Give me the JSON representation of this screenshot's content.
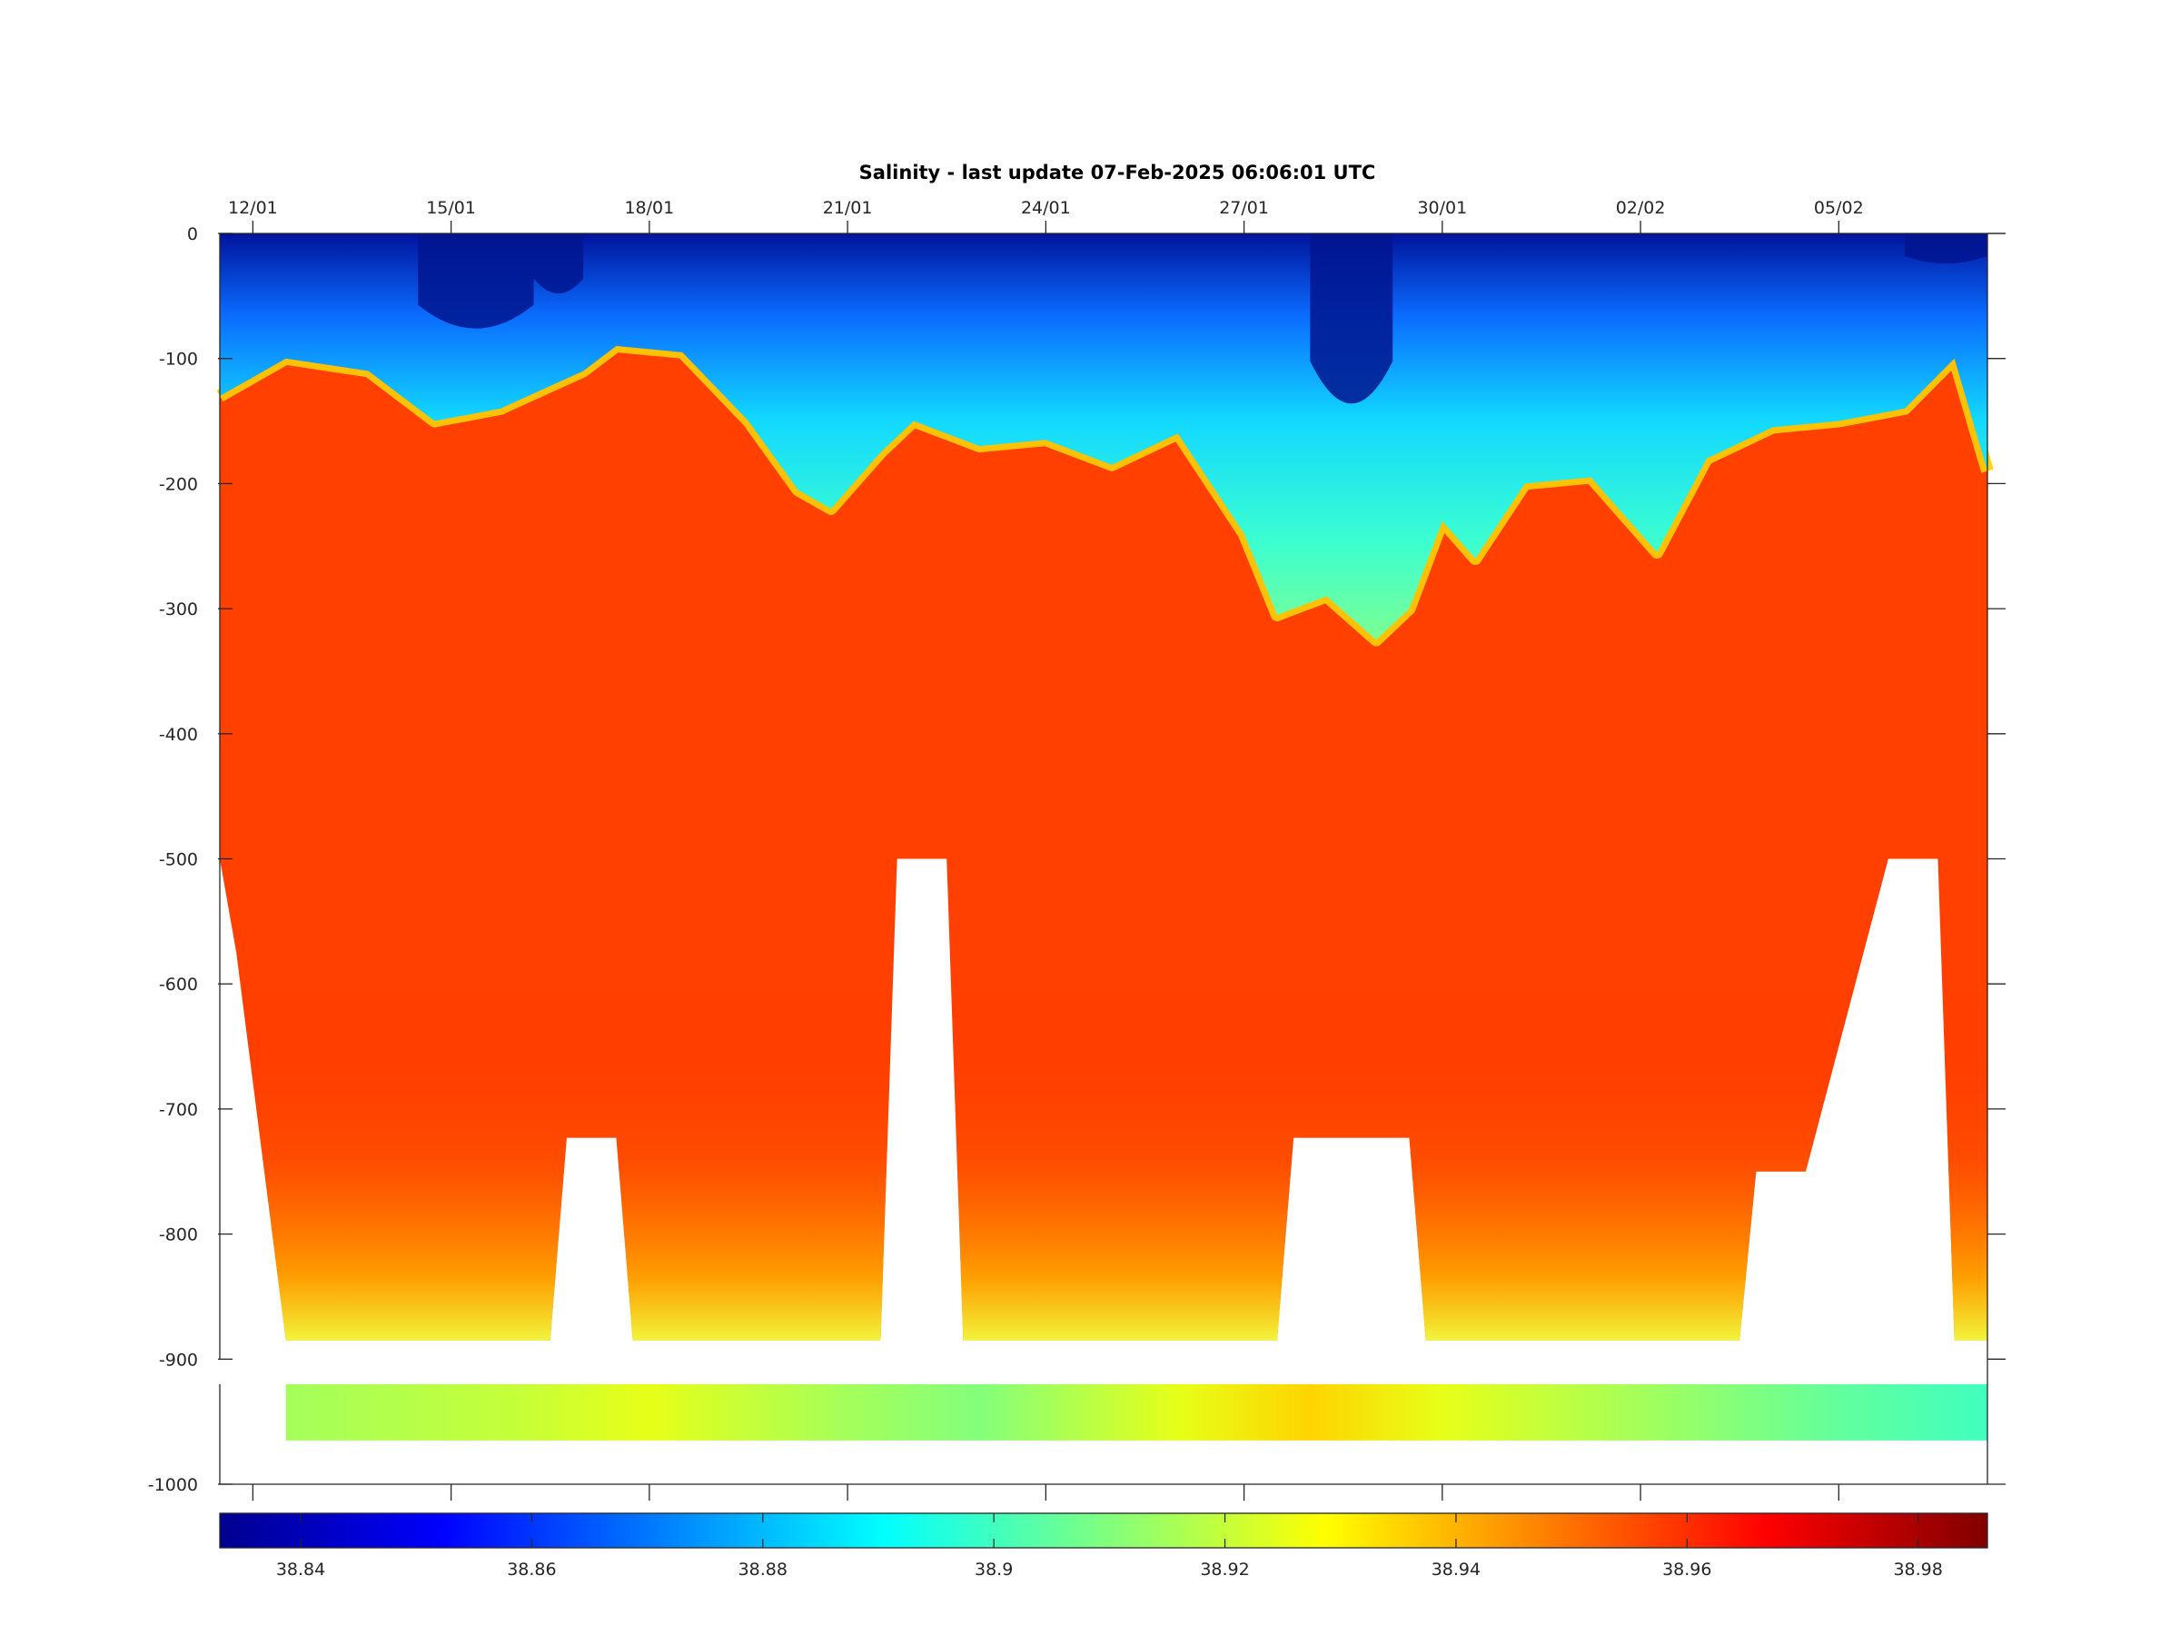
{
  "chart_data": {
    "type": "heatmap",
    "title": "Salinity - last update 07-Feb-2025 06:06:01 UTC",
    "xlabel": "",
    "ylabel": "",
    "x_axis": {
      "kind": "date",
      "range": [
        "2025-01-11T12:00",
        "2025-02-07T06:00"
      ],
      "ticks": [
        {
          "date": "2025-01-12",
          "label": "12/01"
        },
        {
          "date": "2025-01-15",
          "label": "15/01"
        },
        {
          "date": "2025-01-18",
          "label": "18/01"
        },
        {
          "date": "2025-01-21",
          "label": "21/01"
        },
        {
          "date": "2025-01-24",
          "label": "24/01"
        },
        {
          "date": "2025-01-27",
          "label": "27/01"
        },
        {
          "date": "2025-01-30",
          "label": "30/01"
        },
        {
          "date": "2025-02-02",
          "label": "02/02"
        },
        {
          "date": "2025-02-05",
          "label": "05/02"
        }
      ]
    },
    "y_axis": {
      "range": [
        -1000,
        0
      ],
      "ticks": [
        0,
        -100,
        -200,
        -300,
        -400,
        -500,
        -600,
        -700,
        -800,
        -900,
        -1000
      ],
      "tick_labels": [
        "0",
        "-100",
        "-200",
        "-300",
        "-400",
        "-500",
        "-600",
        "-700",
        "-800",
        "-900",
        "-1000"
      ]
    },
    "colorbar": {
      "colormap": "jet",
      "range": [
        38.833,
        38.986
      ],
      "ticks": [
        38.84,
        38.86,
        38.88,
        38.9,
        38.92,
        38.94,
        38.96,
        38.98
      ],
      "tick_labels": [
        "38.84",
        "38.86",
        "38.88",
        "38.9",
        "38.92",
        "38.94",
        "38.96",
        "38.98"
      ],
      "placement": "bottom"
    },
    "fresh_layer_bottom_depth": [
      {
        "date": "2025-01-11T12:00",
        "depth": -130
      },
      {
        "date": "2025-01-12T12:00",
        "depth": -100
      },
      {
        "date": "2025-01-13T18:00",
        "depth": -110
      },
      {
        "date": "2025-01-14T18:00",
        "depth": -150
      },
      {
        "date": "2025-01-15T18:00",
        "depth": -140
      },
      {
        "date": "2025-01-17T00:00",
        "depth": -110
      },
      {
        "date": "2025-01-17T12:00",
        "depth": -90
      },
      {
        "date": "2025-01-18T12:00",
        "depth": -95
      },
      {
        "date": "2025-01-19T12:00",
        "depth": -150
      },
      {
        "date": "2025-01-20T06:00",
        "depth": -205
      },
      {
        "date": "2025-01-20T18:00",
        "depth": -220
      },
      {
        "date": "2025-01-21T12:00",
        "depth": -175
      },
      {
        "date": "2025-01-22T00:00",
        "depth": -150
      },
      {
        "date": "2025-01-23T00:00",
        "depth": -170
      },
      {
        "date": "2025-01-24T00:00",
        "depth": -165
      },
      {
        "date": "2025-01-25T00:00",
        "depth": -185
      },
      {
        "date": "2025-01-26T00:00",
        "depth": -160
      },
      {
        "date": "2025-01-27T00:00",
        "depth": -240
      },
      {
        "date": "2025-01-27T12:00",
        "depth": -305
      },
      {
        "date": "2025-01-28T06:00",
        "depth": -290
      },
      {
        "date": "2025-01-29T00:00",
        "depth": -325
      },
      {
        "date": "2025-01-29T12:00",
        "depth": -300
      },
      {
        "date": "2025-01-30T00:00",
        "depth": -230
      },
      {
        "date": "2025-01-30T12:00",
        "depth": -260
      },
      {
        "date": "2025-01-31T06:00",
        "depth": -200
      },
      {
        "date": "2025-02-01T06:00",
        "depth": -195
      },
      {
        "date": "2025-02-02T06:00",
        "depth": -255
      },
      {
        "date": "2025-02-03T00:00",
        "depth": -180
      },
      {
        "date": "2025-02-04T00:00",
        "depth": -155
      },
      {
        "date": "2025-02-05T00:00",
        "depth": -150
      },
      {
        "date": "2025-02-06T00:00",
        "depth": -140
      },
      {
        "date": "2025-02-06T18:00",
        "depth": -100
      },
      {
        "date": "2025-02-07T06:00",
        "depth": -190
      }
    ],
    "profile_max_depth": [
      {
        "date": "2025-01-11T12:00",
        "depth": -500
      },
      {
        "date": "2025-01-11T18:00",
        "depth": -575
      },
      {
        "date": "2025-01-12T12:00",
        "depth": -885
      },
      {
        "date": "2025-01-16T12:00",
        "depth": -885
      },
      {
        "date": "2025-01-16T18:00",
        "depth": -723
      },
      {
        "date": "2025-01-17T12:00",
        "depth": -723
      },
      {
        "date": "2025-01-17T18:00",
        "depth": -885
      },
      {
        "date": "2025-01-21T12:00",
        "depth": -885
      },
      {
        "date": "2025-01-21T18:00",
        "depth": -500
      },
      {
        "date": "2025-01-22T12:00",
        "depth": -500
      },
      {
        "date": "2025-01-22T18:00",
        "depth": -885
      },
      {
        "date": "2025-01-27T12:00",
        "depth": -885
      },
      {
        "date": "2025-01-27T18:00",
        "depth": -723
      },
      {
        "date": "2025-01-29T12:00",
        "depth": -723
      },
      {
        "date": "2025-01-29T18:00",
        "depth": -885
      },
      {
        "date": "2025-02-03T12:00",
        "depth": -885
      },
      {
        "date": "2025-02-03T18:00",
        "depth": -750
      },
      {
        "date": "2025-02-04T12:00",
        "depth": -750
      },
      {
        "date": "2025-02-05T18:00",
        "depth": -500
      },
      {
        "date": "2025-02-06T12:00",
        "depth": -500
      },
      {
        "date": "2025-02-06T18:00",
        "depth": -885
      },
      {
        "date": "2025-02-07T06:00",
        "depth": -885
      }
    ],
    "deep_band": {
      "depth_range": [
        -920,
        -965
      ],
      "date_range": [
        "2025-01-12T12:00",
        "2025-02-07T06:00"
      ],
      "values": [
        {
          "date": "2025-01-12T12:00",
          "salinity": 38.915
        },
        {
          "date": "2025-01-16T00:00",
          "salinity": 38.92
        },
        {
          "date": "2025-01-18T00:00",
          "salinity": 38.925
        },
        {
          "date": "2025-01-21T00:00",
          "salinity": 38.915
        },
        {
          "date": "2025-01-23T00:00",
          "salinity": 38.91
        },
        {
          "date": "2025-01-26T00:00",
          "salinity": 38.925
        },
        {
          "date": "2025-01-28T00:00",
          "salinity": 38.935
        },
        {
          "date": "2025-01-30T00:00",
          "salinity": 38.925
        },
        {
          "date": "2025-02-02T00:00",
          "salinity": 38.915
        },
        {
          "date": "2025-02-05T00:00",
          "salinity": 38.905
        },
        {
          "date": "2025-02-07T06:00",
          "salinity": 38.9
        }
      ]
    },
    "grid": false,
    "legend": "none"
  }
}
